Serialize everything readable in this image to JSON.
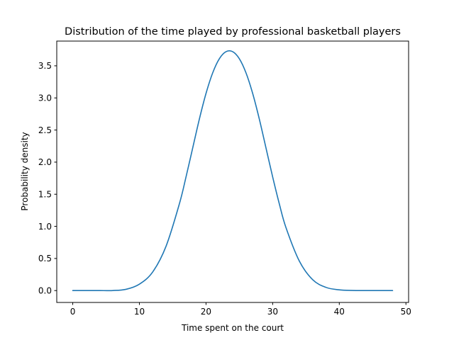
{
  "chart_data": {
    "type": "line",
    "title": "Distribution of the time played by professional basketball players",
    "xlabel": "Time spent on the court",
    "ylabel": "Probability density",
    "xlim": [
      -2.4,
      50.4
    ],
    "ylim": [
      -0.185,
      3.885
    ],
    "xticks": [
      0,
      10,
      20,
      30,
      40,
      50
    ],
    "xtick_labels": [
      "0",
      "10",
      "20",
      "30",
      "40",
      "50"
    ],
    "yticks": [
      0.0,
      0.5,
      1.0,
      1.5,
      2.0,
      2.5,
      3.0,
      3.5
    ],
    "ytick_labels": [
      "0.0",
      "0.5",
      "1.0",
      "1.5",
      "2.0",
      "2.5",
      "3.0",
      "3.5"
    ],
    "grid": false,
    "legend": "none",
    "series": [
      {
        "color": "#1f77b4",
        "x": [
          0,
          2,
          4,
          6,
          8,
          10,
          12,
          14,
          16,
          17,
          18,
          19,
          20,
          21,
          22,
          23,
          24,
          25,
          26,
          27,
          28,
          29,
          30,
          31,
          32,
          34,
          36,
          38,
          40,
          42,
          44,
          46,
          48
        ],
        "y": [
          0.0,
          0.0,
          0.0,
          0.001,
          0.02,
          0.1,
          0.29,
          0.69,
          1.35,
          1.77,
          2.22,
          2.67,
          3.07,
          3.39,
          3.61,
          3.72,
          3.72,
          3.61,
          3.39,
          3.07,
          2.67,
          2.22,
          1.77,
          1.35,
          0.98,
          0.46,
          0.17,
          0.05,
          0.011,
          0.002,
          0.0,
          0.0,
          0.0
        ]
      }
    ]
  }
}
